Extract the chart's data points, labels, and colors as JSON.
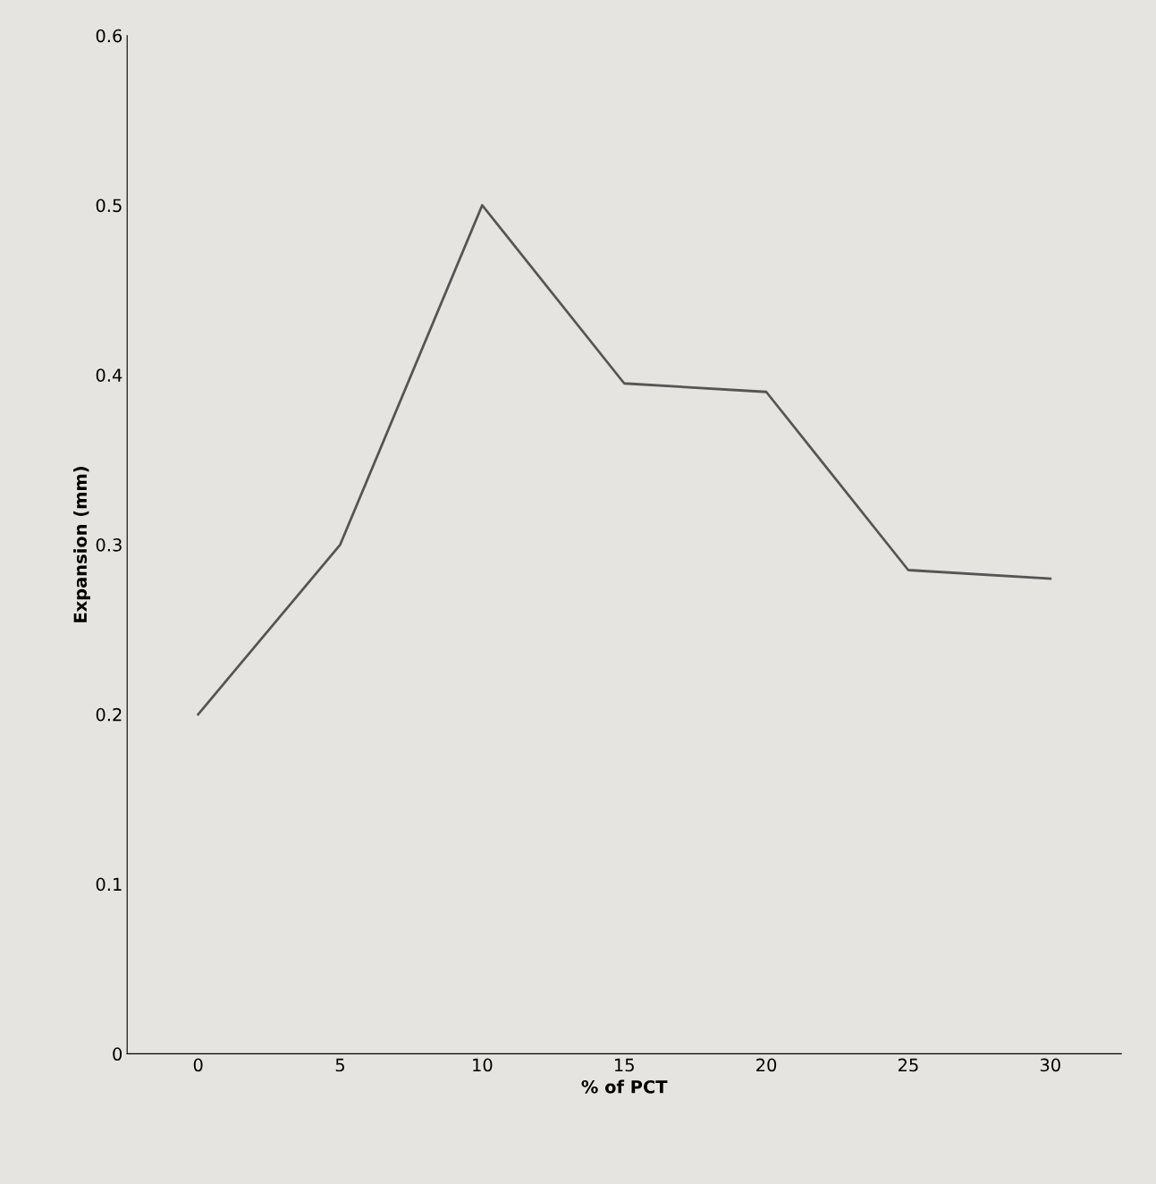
{
  "chart_data": {
    "type": "line",
    "xlabel": "% of PCT",
    "ylabel": "Expansion (mm)",
    "categories": [
      "0",
      "5",
      "10",
      "15",
      "20",
      "25",
      "30"
    ],
    "series": [
      {
        "color": "#555555",
        "values": [
          0.2,
          0.3,
          0.5,
          0.395,
          0.39,
          0.285,
          0.28
        ]
      }
    ],
    "ylim": [
      0,
      0.6
    ],
    "yticks": [
      0,
      0.1,
      0.2,
      0.3,
      0.4,
      0.5,
      0.6
    ],
    "grid": false,
    "marker": "none",
    "line_style": "solid"
  }
}
